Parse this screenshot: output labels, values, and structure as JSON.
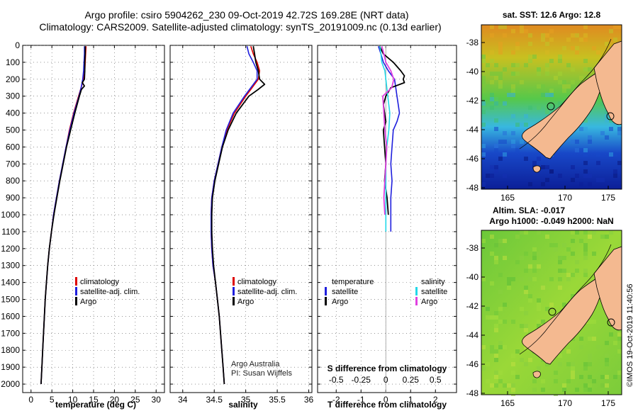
{
  "header": {
    "title_line1": "Argo profile: csiro 5904262_230 09-Oct-2019 42.72S 169.28E (NRT data)",
    "title_line2": "Climatology: CARS2009. Satellite-adjusted climatology: synTS_20191009.nc (0.13d earlier)"
  },
  "colors": {
    "climatology": "#dd0000",
    "satellite": "#1f1fdd",
    "argo": "#000000",
    "sal_satellite": "#22d8e8",
    "sal_argo": "#e040e0",
    "land": "#f4b990"
  },
  "depth_ticks": [
    "0",
    "100",
    "200",
    "300",
    "400",
    "500",
    "600",
    "700",
    "800",
    "900",
    "1000",
    "1100",
    "1200",
    "1300",
    "1400",
    "1500",
    "1600",
    "1700",
    "1800",
    "1900",
    "2000"
  ],
  "chart_data": [
    {
      "type": "line",
      "name": "temperature-profile",
      "xlabel": "temperature (deg C)",
      "ylabel": "depth",
      "xlim": [
        -2,
        32
      ],
      "ylim": [
        2050,
        0
      ],
      "xticks": [
        "0",
        "5",
        "10",
        "15",
        "20",
        "25",
        "30"
      ],
      "xtick_values": [
        0,
        5,
        10,
        15,
        20,
        25,
        30
      ],
      "legend": [
        "climatology",
        "satellite-adj. clim.",
        "Argo"
      ],
      "series": [
        {
          "name": "climatology",
          "depth": [
            5,
            50,
            100,
            150,
            200,
            250,
            300,
            400,
            500,
            600,
            700,
            800,
            900,
            1000,
            1100,
            1200,
            1300,
            1400,
            1500,
            1600,
            1700,
            1800,
            1900,
            2000
          ],
          "values": [
            13.2,
            13.1,
            13.0,
            12.9,
            12.6,
            12.0,
            11.4,
            10.2,
            9.2,
            8.4,
            7.6,
            6.8,
            6.1,
            5.4,
            4.9,
            4.4,
            4.0,
            3.7,
            3.4,
            3.2,
            3.0,
            2.8,
            2.6,
            2.4
          ]
        },
        {
          "name": "satellite-adj. clim.",
          "depth": [
            5,
            50,
            100,
            150,
            200,
            250,
            300,
            400,
            500,
            600,
            700,
            800,
            900,
            1000,
            1100,
            1200,
            1300,
            1400,
            1500,
            1600,
            1700,
            1800,
            1900,
            2000
          ],
          "values": [
            12.8,
            12.8,
            12.7,
            12.6,
            12.4,
            12.0,
            11.5,
            10.3,
            9.3,
            8.4,
            7.6,
            6.8,
            6.1,
            5.4,
            4.9,
            4.4,
            4.0,
            3.7,
            3.4,
            3.2,
            3.0,
            2.8,
            2.6,
            2.4
          ]
        },
        {
          "name": "Argo",
          "depth": [
            5,
            50,
            100,
            150,
            200,
            220,
            240,
            260,
            300,
            400,
            500,
            600,
            700,
            800,
            900,
            1000,
            1100,
            1200,
            1300,
            1400,
            1500,
            1600,
            1700,
            1800,
            1900,
            2000
          ],
          "values": [
            13.0,
            13.0,
            12.9,
            12.9,
            12.8,
            12.3,
            12.8,
            12.1,
            11.6,
            10.5,
            9.5,
            8.5,
            7.7,
            6.9,
            6.2,
            5.5,
            4.9,
            4.4,
            4.0,
            3.7,
            3.4,
            3.2,
            3.0,
            2.8,
            2.6,
            2.4
          ]
        }
      ]
    },
    {
      "type": "line",
      "name": "salinity-profile",
      "xlabel": "salinity",
      "ylabel": "depth",
      "xlim": [
        33.8,
        36.05
      ],
      "ylim": [
        2050,
        0
      ],
      "xticks": [
        "34",
        "34.5",
        "35",
        "35.5",
        "36"
      ],
      "xtick_values": [
        34,
        34.5,
        35,
        35.5,
        36
      ],
      "legend": [
        "climatology",
        "satellite-adj. clim.",
        "Argo"
      ],
      "series": [
        {
          "name": "climatology",
          "depth": [
            5,
            50,
            100,
            150,
            200,
            250,
            300,
            400,
            500,
            600,
            700,
            800,
            900,
            1000,
            1100,
            1200,
            1300,
            1400,
            1500,
            1600,
            1700,
            1800,
            1900,
            2000
          ],
          "values": [
            35.08,
            35.12,
            35.18,
            35.22,
            35.2,
            35.1,
            35.0,
            34.82,
            34.7,
            34.62,
            34.56,
            34.5,
            34.46,
            34.45,
            34.45,
            34.46,
            34.48,
            34.52,
            34.55,
            34.58,
            34.6,
            34.62,
            34.64,
            34.66
          ]
        },
        {
          "name": "satellite-adj. clim.",
          "depth": [
            5,
            50,
            100,
            150,
            200,
            250,
            300,
            400,
            500,
            600,
            700,
            800,
            900,
            1000,
            1100,
            1200,
            1300,
            1400,
            1500,
            1600,
            1700,
            1800,
            1900,
            2000
          ],
          "values": [
            35.02,
            35.05,
            35.12,
            35.18,
            35.18,
            35.08,
            34.98,
            34.8,
            34.69,
            34.62,
            34.56,
            34.5,
            34.46,
            34.45,
            34.45,
            34.46,
            34.48,
            34.52,
            34.55,
            34.58,
            34.6,
            34.62,
            34.64,
            34.66
          ]
        },
        {
          "name": "Argo",
          "depth": [
            5,
            50,
            100,
            150,
            200,
            230,
            260,
            300,
            400,
            500,
            600,
            700,
            800,
            900,
            1000,
            1100,
            1200,
            1300,
            1400,
            1500,
            1600,
            1700,
            1800,
            1900,
            2000
          ],
          "values": [
            35.12,
            35.14,
            35.16,
            35.2,
            35.22,
            35.3,
            35.2,
            35.05,
            34.85,
            34.72,
            34.63,
            34.57,
            34.51,
            34.47,
            34.46,
            34.46,
            34.47,
            34.49,
            34.52,
            34.55,
            34.58,
            34.6,
            34.62,
            34.64,
            34.66
          ]
        }
      ]
    },
    {
      "type": "line",
      "name": "difference-profile",
      "xlabel": "T difference from climatology",
      "xlabel_top": "S difference from climatology",
      "ylabel": "depth",
      "xlim": [
        -2.75,
        2.85
      ],
      "ylim": [
        2050,
        0
      ],
      "xticks": [
        "-2",
        "-1",
        "0",
        "1",
        "2"
      ],
      "xtick_values": [
        -2,
        -1,
        0,
        1,
        2
      ],
      "sticks": [
        "-0.5",
        "-0.25",
        "0",
        "0.25",
        "0.5"
      ],
      "stick_values": [
        -0.5,
        -0.25,
        0,
        0.25,
        0.5
      ],
      "legend_left_title": "temperature",
      "legend_right_title": "salinity",
      "legend_left": [
        "satellite",
        "Argo"
      ],
      "legend_right": [
        "satellite",
        "Argo"
      ],
      "series": [
        {
          "name": "T satellite",
          "units": "deg C",
          "depth": [
            5,
            50,
            100,
            150,
            200,
            250,
            300,
            350,
            400,
            450,
            500,
            600,
            700,
            800,
            900,
            1000,
            1100
          ],
          "values": [
            -0.3,
            -0.2,
            -0.1,
            0.1,
            0.35,
            0.4,
            0.45,
            0.5,
            0.55,
            0.45,
            0.3,
            0.25,
            0.2,
            0.25,
            0.2,
            0.2,
            0.2
          ]
        },
        {
          "name": "T Argo",
          "units": "deg C",
          "depth": [
            5,
            50,
            100,
            150,
            180,
            200,
            220,
            250,
            300,
            350,
            400,
            450,
            500,
            600,
            700,
            800,
            900,
            1000
          ],
          "values": [
            -0.25,
            -0.1,
            0.3,
            0.6,
            0.75,
            0.7,
            0.75,
            0.2,
            0.0,
            -0.1,
            -0.05,
            0.0,
            -0.1,
            -0.05,
            0.0,
            -0.05,
            0.05,
            0.1
          ]
        },
        {
          "name": "S satellite",
          "units": "psu",
          "depth": [
            5,
            50,
            100,
            150,
            200,
            300,
            400,
            500,
            600,
            700,
            800,
            900,
            1000,
            1100
          ],
          "values": [
            -0.06,
            -0.05,
            -0.04,
            -0.01,
            0.0,
            0.02,
            0.04,
            0.03,
            0.01,
            0.0,
            0.0,
            0.0,
            0.0,
            0.0
          ]
        },
        {
          "name": "S Argo",
          "units": "psu",
          "depth": [
            5,
            50,
            100,
            150,
            200,
            250,
            300,
            400,
            500,
            600,
            700,
            800,
            900,
            1000
          ],
          "values": [
            -0.04,
            -0.02,
            0.0,
            0.05,
            0.08,
            0.06,
            -0.03,
            -0.02,
            -0.01,
            0.01,
            0.0,
            -0.01,
            -0.02,
            -0.01
          ]
        }
      ]
    }
  ],
  "maps": {
    "sst": {
      "title": "sat. SST: 12.6 Argo: 12.8",
      "lon_ticks": [
        "165",
        "170",
        "175"
      ],
      "lat_ticks": [
        "-38",
        "-40",
        "-42",
        "-44",
        "-46",
        "-48"
      ]
    },
    "sla": {
      "title1": "Altim. SLA: -0.017",
      "title2": "Argo h1000: -0.049 h2000: NaN",
      "lon_ticks": [
        "165",
        "170",
        "175"
      ],
      "lat_ticks": [
        "-38",
        "-40",
        "-42",
        "-44",
        "-46",
        "-48"
      ]
    }
  },
  "credits": {
    "line1": "Argo Australia",
    "line2": "PI: Susan Wijffels",
    "stamp": "©IMOS 19-Oct-2019 11:40:56"
  }
}
